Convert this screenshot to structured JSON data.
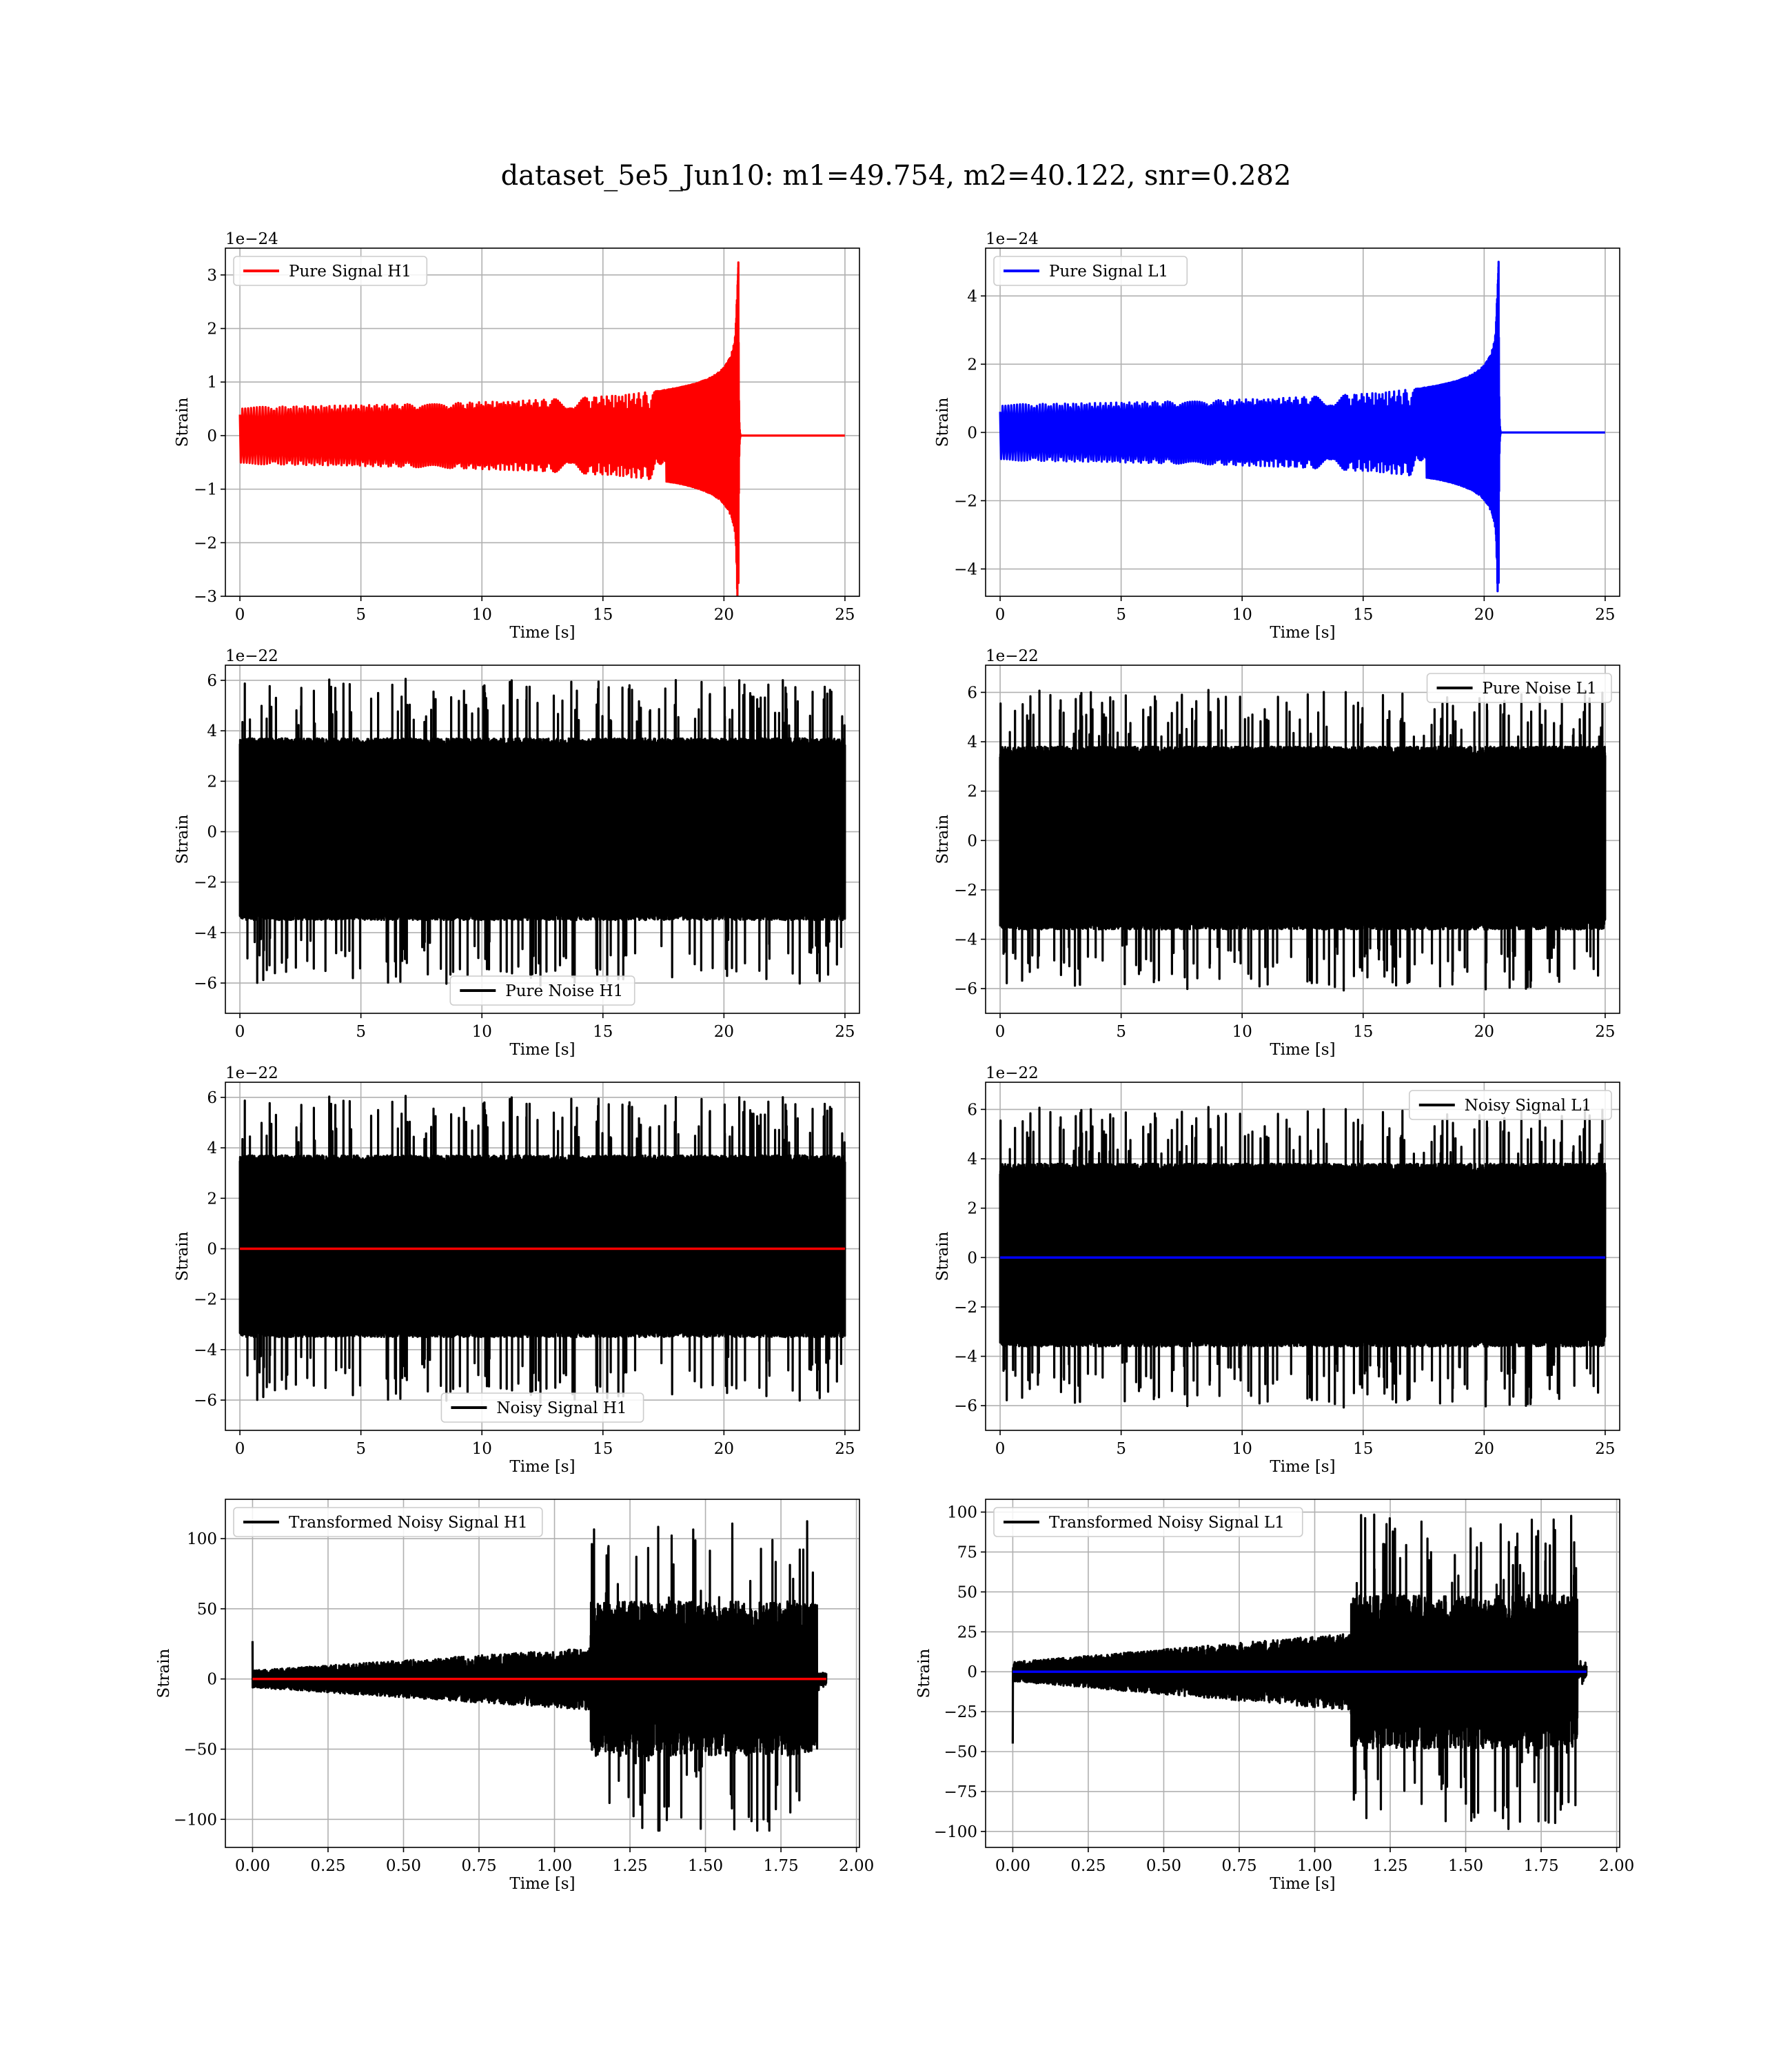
{
  "figure": {
    "suptitle": "dataset_5e5_Jun10: m1=49.754, m2=40.122, snr=0.282"
  },
  "colors": {
    "h1": "#ff0000",
    "l1": "#0000ff",
    "noise": "#000000",
    "grid": "#b0b0b0"
  },
  "chart_data": [
    {
      "id": "pure-signal-h1",
      "type": "line",
      "kind": "chirp",
      "xlabel": "Time [s]",
      "ylabel": "Strain",
      "offset_text": "1e−24",
      "xlim": [
        -0.6,
        25.6
      ],
      "ylim": [
        -3.0,
        3.5
      ],
      "xticks": [
        0,
        5,
        10,
        15,
        20,
        25
      ],
      "xtick_labels": [
        "0",
        "5",
        "10",
        "15",
        "20",
        "25"
      ],
      "yticks": [
        -3,
        -2,
        -1,
        0,
        1,
        2,
        3
      ],
      "ytick_labels": [
        "−3",
        "−2",
        "−1",
        "0",
        "1",
        "2",
        "3"
      ],
      "grid": true,
      "legend_loc": "upper left",
      "series": [
        {
          "name": "Pure Signal H1",
          "color": "#ff0000",
          "x_range": [
            0,
            25
          ],
          "merger_t": 20.6,
          "peak_pos": 3.3,
          "peak_neg": -2.75,
          "envelope_at_19_5": 1.1
        }
      ]
    },
    {
      "id": "pure-signal-l1",
      "type": "line",
      "kind": "chirp",
      "xlabel": "Time [s]",
      "ylabel": "Strain",
      "offset_text": "1e−24",
      "xlim": [
        -0.6,
        25.6
      ],
      "ylim": [
        -4.8,
        5.4
      ],
      "xticks": [
        0,
        5,
        10,
        15,
        20,
        25
      ],
      "xtick_labels": [
        "0",
        "5",
        "10",
        "15",
        "20",
        "25"
      ],
      "yticks": [
        -4,
        -2,
        0,
        2,
        4
      ],
      "ytick_labels": [
        "−4",
        "−2",
        "0",
        "2",
        "4"
      ],
      "grid": true,
      "legend_loc": "upper left",
      "series": [
        {
          "name": "Pure Signal L1",
          "color": "#0000ff",
          "x_range": [
            0,
            25
          ],
          "merger_t": 20.6,
          "peak_pos": 5.1,
          "peak_neg": -4.4,
          "envelope_at_19_5": 1.7
        }
      ]
    },
    {
      "id": "pure-noise-h1",
      "type": "line",
      "kind": "noise",
      "xlabel": "Time [s]",
      "ylabel": "Strain",
      "offset_text": "1e−22",
      "xlim": [
        -0.6,
        25.6
      ],
      "ylim": [
        -7.2,
        6.6
      ],
      "xticks": [
        0,
        5,
        10,
        15,
        20,
        25
      ],
      "xtick_labels": [
        "0",
        "5",
        "10",
        "15",
        "20",
        "25"
      ],
      "yticks": [
        -6,
        -4,
        -2,
        0,
        2,
        4,
        6
      ],
      "ytick_labels": [
        "−6",
        "−4",
        "−2",
        "0",
        "2",
        "4",
        "6"
      ],
      "grid": true,
      "legend_loc": "lower center",
      "series": [
        {
          "name": "Pure Noise H1",
          "color": "#000000",
          "x_range": [
            0,
            25
          ],
          "band": [
            -3.5,
            3.7
          ],
          "max": 6.1,
          "min": -6.5,
          "seed": 11
        }
      ]
    },
    {
      "id": "pure-noise-l1",
      "type": "line",
      "kind": "noise",
      "xlabel": "Time [s]",
      "ylabel": "Strain",
      "offset_text": "1e−22",
      "xlim": [
        -0.6,
        25.6
      ],
      "ylim": [
        -7.0,
        7.1
      ],
      "xticks": [
        0,
        5,
        10,
        15,
        20,
        25
      ],
      "xtick_labels": [
        "0",
        "5",
        "10",
        "15",
        "20",
        "25"
      ],
      "yticks": [
        -6,
        -4,
        -2,
        0,
        2,
        4,
        6
      ],
      "ytick_labels": [
        "−6",
        "−4",
        "−2",
        "0",
        "2",
        "4",
        "6"
      ],
      "grid": true,
      "legend_loc": "upper right",
      "series": [
        {
          "name": "Pure Noise L1",
          "color": "#000000",
          "x_range": [
            0,
            25
          ],
          "band": [
            -3.6,
            3.8
          ],
          "max": 6.5,
          "min": -6.3,
          "seed": 23
        }
      ]
    },
    {
      "id": "noisy-signal-h1",
      "type": "line",
      "kind": "noise",
      "xlabel": "Time [s]",
      "ylabel": "Strain",
      "offset_text": "1e−22",
      "xlim": [
        -0.6,
        25.6
      ],
      "ylim": [
        -7.2,
        6.6
      ],
      "xticks": [
        0,
        5,
        10,
        15,
        20,
        25
      ],
      "xtick_labels": [
        "0",
        "5",
        "10",
        "15",
        "20",
        "25"
      ],
      "yticks": [
        -6,
        -4,
        -2,
        0,
        2,
        4,
        6
      ],
      "ytick_labels": [
        "−6",
        "−4",
        "−2",
        "0",
        "2",
        "4",
        "6"
      ],
      "grid": true,
      "legend_loc": "lower center",
      "series": [
        {
          "name": "Noisy Signal H1",
          "color": "#000000",
          "x_range": [
            0,
            25
          ],
          "band": [
            -3.5,
            3.7
          ],
          "max": 6.1,
          "min": -6.5,
          "seed": 11
        }
      ],
      "overlay": {
        "color": "#ff0000",
        "x_range": [
          0,
          25
        ],
        "y": 0
      }
    },
    {
      "id": "noisy-signal-l1",
      "type": "line",
      "kind": "noise",
      "xlabel": "Time [s]",
      "ylabel": "Strain",
      "offset_text": "1e−22",
      "xlim": [
        -0.6,
        25.6
      ],
      "ylim": [
        -7.0,
        7.1
      ],
      "xticks": [
        0,
        5,
        10,
        15,
        20,
        25
      ],
      "xtick_labels": [
        "0",
        "5",
        "10",
        "15",
        "20",
        "25"
      ],
      "yticks": [
        -6,
        -4,
        -2,
        0,
        2,
        4,
        6
      ],
      "ytick_labels": [
        "−6",
        "−4",
        "−2",
        "0",
        "2",
        "4",
        "6"
      ],
      "grid": true,
      "legend_loc": "upper right",
      "series": [
        {
          "name": "Noisy Signal L1",
          "color": "#000000",
          "x_range": [
            0,
            25
          ],
          "band": [
            -3.6,
            3.8
          ],
          "max": 6.5,
          "min": -6.3,
          "seed": 23
        }
      ],
      "overlay": {
        "color": "#0000ff",
        "x_range": [
          0,
          25
        ],
        "y": 0
      }
    },
    {
      "id": "transformed-h1",
      "type": "line",
      "kind": "whitened",
      "xlabel": "Time [s]",
      "ylabel": "Strain",
      "offset_text": "",
      "xlim": [
        -0.09,
        2.01
      ],
      "ylim": [
        -120,
        128
      ],
      "xticks": [
        0,
        0.25,
        0.5,
        0.75,
        1.0,
        1.25,
        1.5,
        1.75,
        2.0
      ],
      "xtick_labels": [
        "0.00",
        "0.25",
        "0.50",
        "0.75",
        "1.00",
        "1.25",
        "1.50",
        "1.75",
        "2.00"
      ],
      "yticks": [
        -100,
        -50,
        0,
        50,
        100
      ],
      "ytick_labels": [
        "−100",
        "−50",
        "0",
        "50",
        "100"
      ],
      "grid": true,
      "legend_loc": "upper left",
      "series": [
        {
          "name": "Transformed Noisy Signal H1",
          "color": "#000000",
          "x_range": [
            0,
            1.9
          ],
          "step_t": 1.12,
          "low_amp": [
            6,
            22
          ],
          "high_amp": 55,
          "max": 118,
          "min": -108,
          "spike0": 27,
          "seed": 37
        }
      ],
      "overlay": {
        "color": "#ff0000",
        "x_range": [
          0,
          1.9
        ],
        "y": 0
      }
    },
    {
      "id": "transformed-l1",
      "type": "line",
      "kind": "whitened",
      "xlabel": "Time [s]",
      "ylabel": "Strain",
      "offset_text": "",
      "xlim": [
        -0.09,
        2.01
      ],
      "ylim": [
        -110,
        108
      ],
      "xticks": [
        0,
        0.25,
        0.5,
        0.75,
        1.0,
        1.25,
        1.5,
        1.75,
        2.0
      ],
      "xtick_labels": [
        "0.00",
        "0.25",
        "0.50",
        "0.75",
        "1.00",
        "1.25",
        "1.50",
        "1.75",
        "2.00"
      ],
      "yticks": [
        -100,
        -75,
        -50,
        -25,
        0,
        25,
        50,
        75,
        100
      ],
      "ytick_labels": [
        "−100",
        "−75",
        "−50",
        "−25",
        "0",
        "25",
        "50",
        "75",
        "100"
      ],
      "grid": true,
      "legend_loc": "upper left",
      "series": [
        {
          "name": "Transformed Noisy Signal L1",
          "color": "#000000",
          "x_range": [
            0,
            1.9
          ],
          "step_t": 1.12,
          "low_amp": [
            6,
            24
          ],
          "high_amp": 48,
          "max": 101,
          "min": -100,
          "spike0": -45,
          "seed": 53
        }
      ],
      "overlay": {
        "color": "#0000ff",
        "x_range": [
          0,
          1.9
        ],
        "y": 0
      }
    }
  ]
}
